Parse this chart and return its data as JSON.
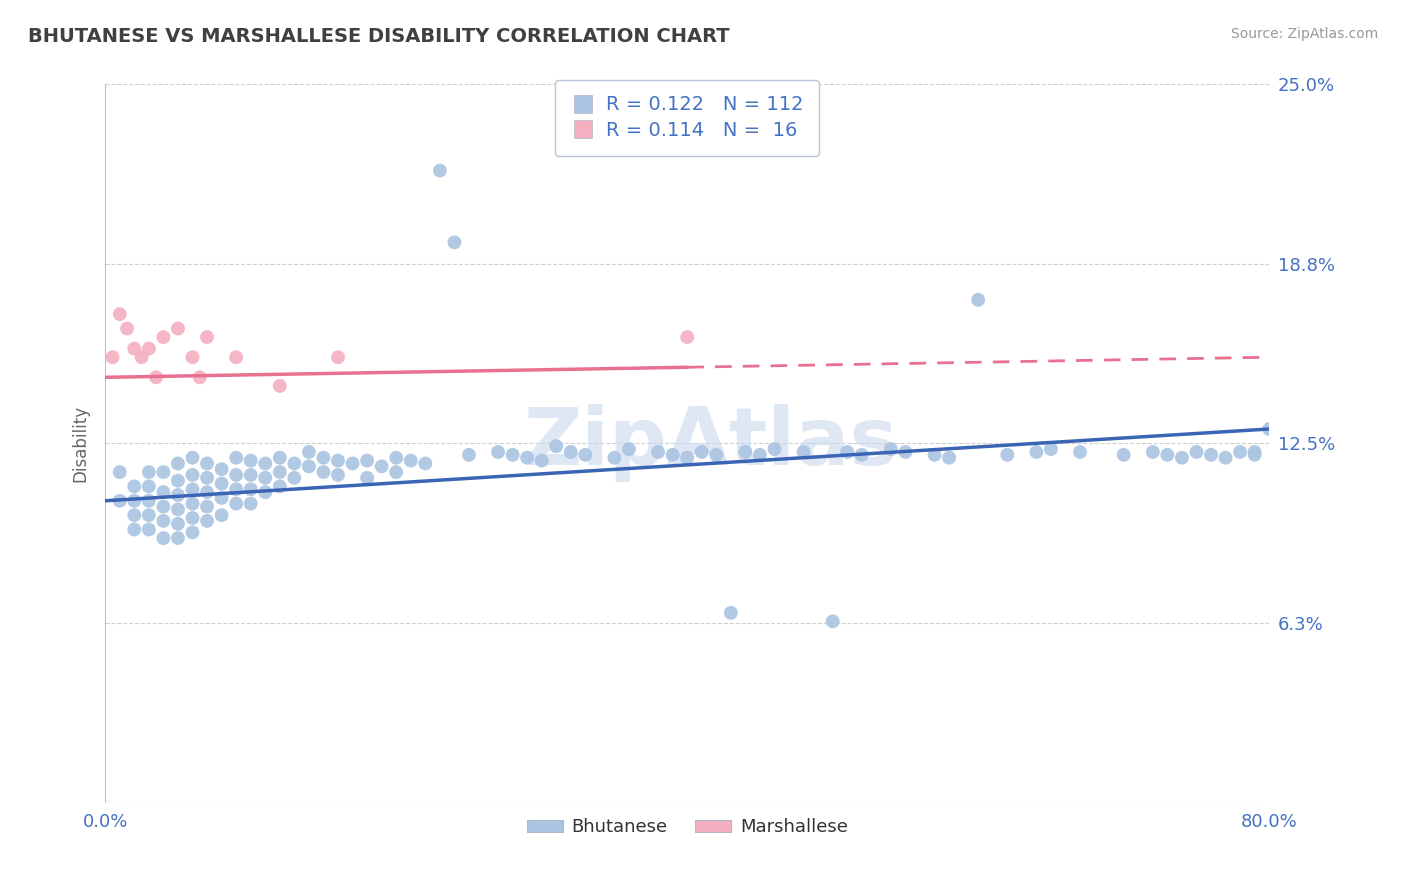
{
  "title": "BHUTANESE VS MARSHALLESE DISABILITY CORRELATION CHART",
  "source_text": "Source: ZipAtlas.com",
  "ylabel": "Disability",
  "xmin": 0.0,
  "xmax": 0.8,
  "ymin": 0.0,
  "ymax": 0.25,
  "yticks": [
    0.0,
    0.0625,
    0.125,
    0.1875,
    0.25
  ],
  "ytick_labels": [
    "",
    "6.3%",
    "12.5%",
    "18.8%",
    "25.0%"
  ],
  "bhutanese_R": 0.122,
  "bhutanese_N": 112,
  "marshallese_R": 0.114,
  "marshallese_N": 16,
  "bhutanese_color": "#aac4e2",
  "marshallese_color": "#f4afc0",
  "trend_blue": "#3a65b5",
  "trend_pink": "#e87090",
  "background_color": "#ffffff",
  "title_color": "#404040",
  "axis_label_color": "#4472c4",
  "grid_color": "#d0d0d0",
  "watermark_color": "#c8d8ec",
  "watermark_text": "ZipAtlas",
  "bhutanese_x": [
    0.01,
    0.01,
    0.02,
    0.02,
    0.02,
    0.02,
    0.03,
    0.03,
    0.03,
    0.03,
    0.03,
    0.04,
    0.04,
    0.04,
    0.04,
    0.04,
    0.05,
    0.05,
    0.05,
    0.05,
    0.05,
    0.05,
    0.06,
    0.06,
    0.06,
    0.06,
    0.06,
    0.06,
    0.07,
    0.07,
    0.07,
    0.07,
    0.07,
    0.08,
    0.08,
    0.08,
    0.08,
    0.09,
    0.09,
    0.09,
    0.09,
    0.1,
    0.1,
    0.1,
    0.1,
    0.11,
    0.11,
    0.11,
    0.12,
    0.12,
    0.12,
    0.13,
    0.13,
    0.14,
    0.14,
    0.15,
    0.15,
    0.16,
    0.16,
    0.17,
    0.18,
    0.18,
    0.19,
    0.2,
    0.2,
    0.21,
    0.22,
    0.23,
    0.24,
    0.25,
    0.27,
    0.28,
    0.29,
    0.3,
    0.31,
    0.32,
    0.33,
    0.35,
    0.36,
    0.38,
    0.39,
    0.4,
    0.41,
    0.42,
    0.43,
    0.44,
    0.45,
    0.46,
    0.48,
    0.5,
    0.51,
    0.52,
    0.54,
    0.55,
    0.57,
    0.58,
    0.6,
    0.62,
    0.64,
    0.65,
    0.67,
    0.7,
    0.72,
    0.73,
    0.74,
    0.75,
    0.76,
    0.77,
    0.78,
    0.79,
    0.79,
    0.8
  ],
  "bhutanese_y": [
    0.115,
    0.105,
    0.11,
    0.105,
    0.1,
    0.095,
    0.115,
    0.11,
    0.105,
    0.1,
    0.095,
    0.115,
    0.108,
    0.103,
    0.098,
    0.092,
    0.118,
    0.112,
    0.107,
    0.102,
    0.097,
    0.092,
    0.12,
    0.114,
    0.109,
    0.104,
    0.099,
    0.094,
    0.118,
    0.113,
    0.108,
    0.103,
    0.098,
    0.116,
    0.111,
    0.106,
    0.1,
    0.12,
    0.114,
    0.109,
    0.104,
    0.119,
    0.114,
    0.109,
    0.104,
    0.118,
    0.113,
    0.108,
    0.12,
    0.115,
    0.11,
    0.118,
    0.113,
    0.122,
    0.117,
    0.12,
    0.115,
    0.119,
    0.114,
    0.118,
    0.119,
    0.113,
    0.117,
    0.12,
    0.115,
    0.119,
    0.118,
    0.22,
    0.195,
    0.121,
    0.122,
    0.121,
    0.12,
    0.119,
    0.124,
    0.122,
    0.121,
    0.12,
    0.123,
    0.122,
    0.121,
    0.12,
    0.122,
    0.121,
    0.066,
    0.122,
    0.121,
    0.123,
    0.122,
    0.063,
    0.122,
    0.121,
    0.123,
    0.122,
    0.121,
    0.12,
    0.175,
    0.121,
    0.122,
    0.123,
    0.122,
    0.121,
    0.122,
    0.121,
    0.12,
    0.122,
    0.121,
    0.12,
    0.122,
    0.121,
    0.122,
    0.13
  ],
  "marshallese_x": [
    0.005,
    0.01,
    0.015,
    0.02,
    0.025,
    0.03,
    0.035,
    0.04,
    0.05,
    0.06,
    0.065,
    0.07,
    0.09,
    0.12,
    0.16,
    0.4
  ],
  "marshallese_y": [
    0.155,
    0.17,
    0.165,
    0.158,
    0.155,
    0.158,
    0.148,
    0.162,
    0.165,
    0.155,
    0.148,
    0.162,
    0.155,
    0.145,
    0.155,
    0.162
  ]
}
